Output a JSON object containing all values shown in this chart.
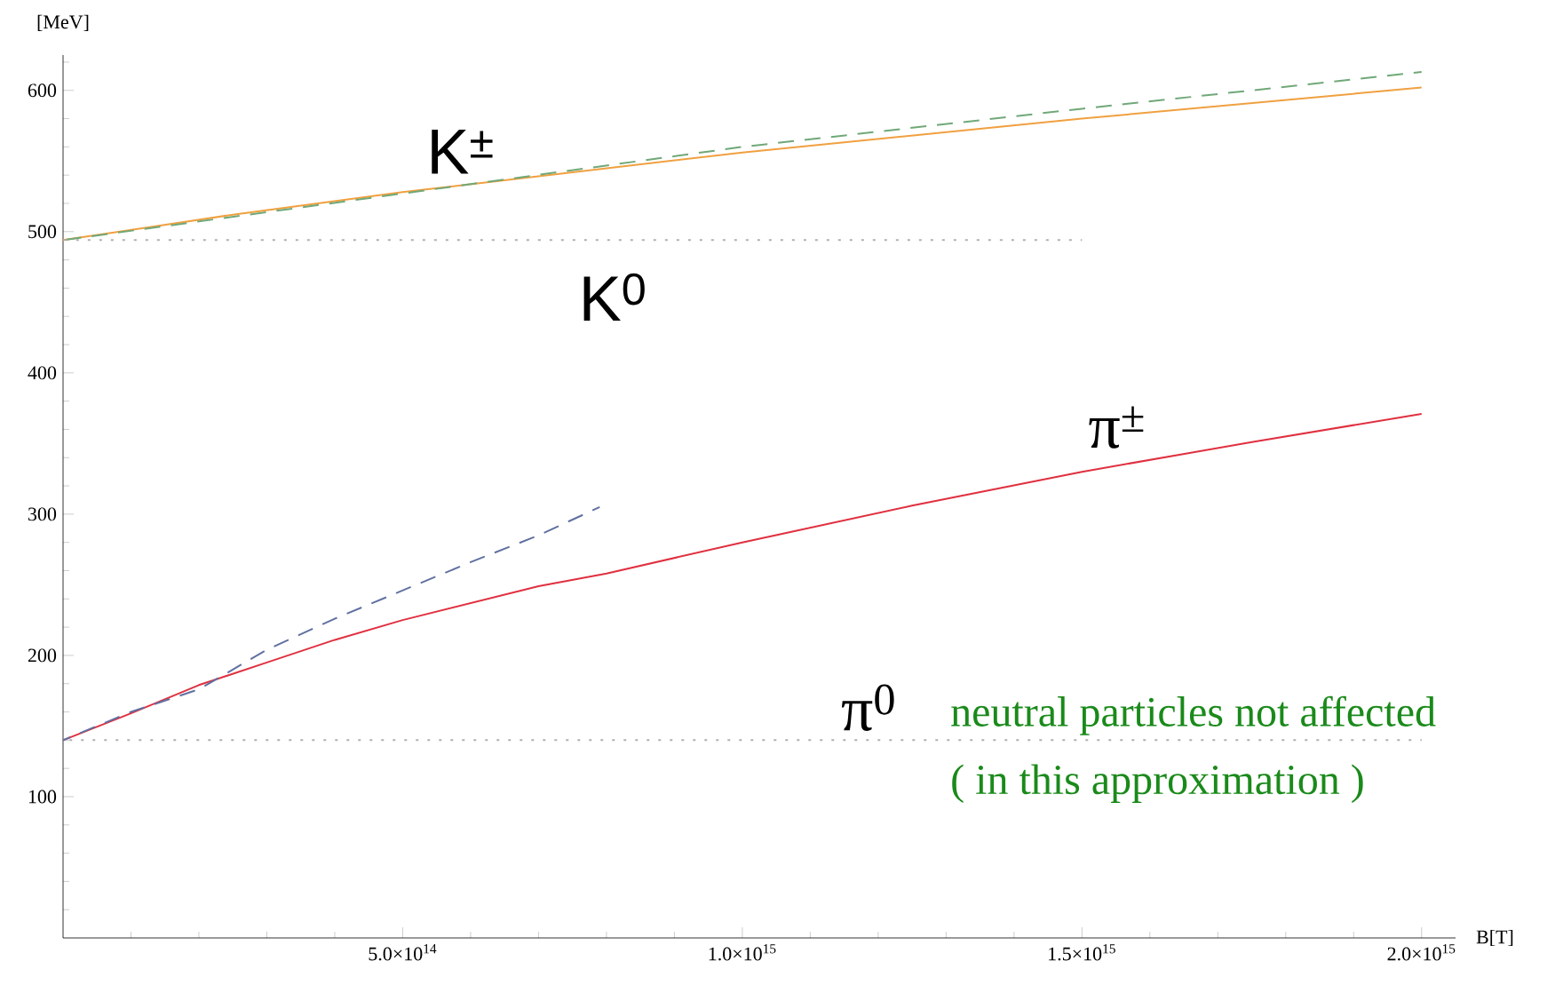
{
  "chart_data": {
    "type": "line",
    "xlabel": "B[T]",
    "ylabel": "[MeV]",
    "xlim": [
      0,
      2050000000000000.0
    ],
    "ylim": [
      0,
      625
    ],
    "xticks": [
      {
        "value": 100000000000000.0,
        "label": null
      },
      {
        "value": 200000000000000.0,
        "label": null
      },
      {
        "value": 300000000000000.0,
        "label": null
      },
      {
        "value": 400000000000000.0,
        "label": null
      },
      {
        "value": 500000000000000.0,
        "label": "5.0×10$^{14}$"
      },
      {
        "value": 600000000000000.0,
        "label": null
      },
      {
        "value": 700000000000000.0,
        "label": null
      },
      {
        "value": 800000000000000.0,
        "label": null
      },
      {
        "value": 900000000000000.0,
        "label": null
      },
      {
        "value": 1000000000000000.0,
        "label": "1.0×10$^{15}$"
      },
      {
        "value": 1100000000000000.0,
        "label": null
      },
      {
        "value": 1200000000000000.0,
        "label": null
      },
      {
        "value": 1300000000000000.0,
        "label": null
      },
      {
        "value": 1400000000000000.0,
        "label": null
      },
      {
        "value": 1500000000000000.0,
        "label": "1.5×10$^{15}$"
      },
      {
        "value": 1600000000000000.0,
        "label": null
      },
      {
        "value": 1700000000000000.0,
        "label": null
      },
      {
        "value": 1800000000000000.0,
        "label": null
      },
      {
        "value": 1900000000000000.0,
        "label": null
      },
      {
        "value": 2000000000000000.0,
        "label": "2.0×10$^{15}$"
      }
    ],
    "yticks": [
      {
        "value": 20,
        "label": null
      },
      {
        "value": 40,
        "label": null
      },
      {
        "value": 60,
        "label": null
      },
      {
        "value": 80,
        "label": null
      },
      100,
      {
        "value": 120,
        "label": null
      },
      {
        "value": 140,
        "label": null
      },
      {
        "value": 160,
        "label": null
      },
      {
        "value": 180,
        "label": null
      },
      200,
      {
        "value": 220,
        "label": null
      },
      {
        "value": 240,
        "label": null
      },
      {
        "value": 260,
        "label": null
      },
      {
        "value": 280,
        "label": null
      },
      300,
      {
        "value": 320,
        "label": null
      },
      {
        "value": 340,
        "label": null
      },
      {
        "value": 360,
        "label": null
      },
      {
        "value": 380,
        "label": null
      },
      400,
      {
        "value": 420,
        "label": null
      },
      {
        "value": 440,
        "label": null
      },
      {
        "value": 460,
        "label": null
      },
      {
        "value": 480,
        "label": null
      },
      500,
      {
        "value": 520,
        "label": null
      },
      {
        "value": 540,
        "label": null
      },
      {
        "value": 560,
        "label": null
      },
      {
        "value": 580,
        "label": null
      },
      600,
      {
        "value": 620,
        "label": null
      }
    ],
    "marker": "none",
    "series": [
      {
        "name": "K$^{±}$",
        "color": "#f0a040",
        "line_style": "solid",
        "x": [
          0,
          250000000000000.0,
          500000000000000.0,
          750000000000000.0,
          1000000000000000.0,
          1250000000000000.0,
          1500000000000000.0,
          1750000000000000.0,
          2000000000000000.0
        ],
        "values": [
          494,
          512,
          528,
          542,
          556,
          568,
          580,
          591,
          602
        ]
      },
      {
        "color": "#70a878",
        "line_style": "dashed",
        "x": [
          0,
          500000000000000.0,
          1000000000000000.0,
          1500000000000000.0,
          2000000000000000.0
        ],
        "values": [
          494,
          527,
          560,
          587,
          613
        ]
      },
      {
        "name": "K$^{0}$",
        "color": "#b0b0b0",
        "line_style": "dotted",
        "x": [
          0,
          1500000000000000.0
        ],
        "values": [
          494,
          494
        ]
      },
      {
        "name": "π$^{±}$",
        "color": "#e03040",
        "line_style": "solid",
        "x": [
          0,
          100000000000000.0,
          200000000000000.0,
          300000000000000.0,
          400000000000000.0,
          500000000000000.0,
          600000000000000.0,
          700000000000000.0,
          800000000000000.0,
          1000000000000000.0,
          1250000000000000.0,
          1500000000000000.0,
          1750000000000000.0,
          2000000000000000.0
        ],
        "values": [
          140,
          159,
          179,
          195,
          211,
          225,
          237,
          249,
          258,
          280,
          306,
          330,
          351,
          371
        ]
      },
      {
        "color": "#6070a0",
        "line_style": "dashed",
        "x": [
          0,
          100000000000000.0,
          200000000000000.0,
          300000000000000.0,
          400000000000000.0,
          500000000000000.0,
          600000000000000.0,
          700000000000000.0,
          790000000000000.0
        ],
        "values": [
          140,
          160,
          176,
          204,
          226,
          246,
          266,
          285,
          305
        ]
      },
      {
        "name": "π$^{0}$",
        "color": "#b0b0b0",
        "line_style": "dotted",
        "x": [
          0,
          2000000000000000.0
        ],
        "values": [
          140,
          140
        ]
      }
    ],
    "annotations": [
      "neutral particles not affected",
      "( in this approximation )"
    ]
  }
}
